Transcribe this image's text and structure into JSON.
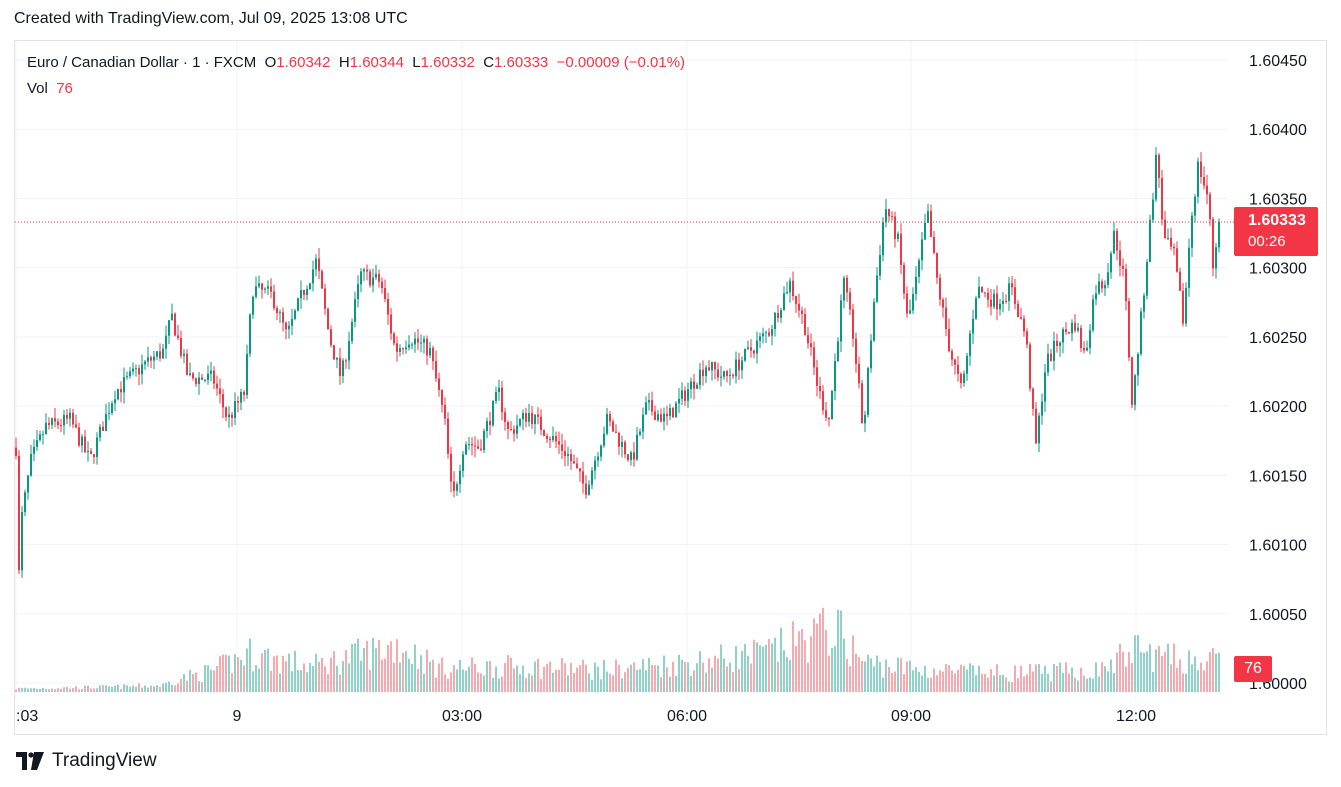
{
  "header": {
    "title": "Created with TradingView.com, Jul 09, 2025 13:08 UTC"
  },
  "legend": {
    "symbol": "Euro / Canadian Dollar · 1 · FXCM",
    "o_label": "O",
    "o_value": "1.60342",
    "h_label": "H",
    "h_value": "1.60344",
    "l_label": "L",
    "l_value": "1.60332",
    "c_label": "C",
    "c_value": "1.60333",
    "change": "−0.00009 (−0.01%)",
    "vol_label": "Vol",
    "vol_value": "76"
  },
  "badges": {
    "price": "1.60333",
    "countdown": "00:26",
    "volume": "76"
  },
  "footer": {
    "brand": "TradingView"
  },
  "colors": {
    "up": "#089981",
    "down": "#f23645",
    "grid": "#f0f3fa"
  },
  "chart_data": {
    "type": "candlestick",
    "y_axis": {
      "range": [
        1.6,
        1.6045
      ],
      "ticks": [
        "1.60450",
        "1.60400",
        "1.60350",
        "1.60300",
        "1.60250",
        "1.60200",
        "1.60150",
        "1.60100",
        "1.60050",
        "1.60000"
      ]
    },
    "x_axis": {
      "ticks": [
        ":03",
        "9",
        "03:00",
        "06:00",
        "09:00",
        "12:00"
      ]
    },
    "last_price": 1.60333,
    "path_price": [
      [
        0,
        1.6017
      ],
      [
        1,
        1.6005
      ],
      [
        6,
        1.6012
      ],
      [
        15,
        1.6016
      ],
      [
        30,
        1.60185
      ],
      [
        55,
        1.6019
      ],
      [
        75,
        1.6016
      ],
      [
        100,
        1.6021
      ],
      [
        130,
        1.6023
      ],
      [
        150,
        1.6024
      ],
      [
        158,
        1.60265
      ],
      [
        175,
        1.6022
      ],
      [
        200,
        1.6022
      ],
      [
        215,
        1.6019
      ],
      [
        232,
        1.6021
      ],
      [
        240,
        1.60285
      ],
      [
        260,
        1.6028
      ],
      [
        275,
        1.6025
      ],
      [
        290,
        1.6028
      ],
      [
        305,
        1.60305
      ],
      [
        318,
        1.6025
      ],
      [
        330,
        1.6022
      ],
      [
        350,
        1.60295
      ],
      [
        370,
        1.6029
      ],
      [
        385,
        1.6024
      ],
      [
        400,
        1.6025
      ],
      [
        420,
        1.6024
      ],
      [
        435,
        1.6019
      ],
      [
        443,
        1.6013
      ],
      [
        455,
        1.60175
      ],
      [
        470,
        1.6017
      ],
      [
        490,
        1.6021
      ],
      [
        500,
        1.6018
      ],
      [
        520,
        1.60195
      ],
      [
        540,
        1.6018
      ],
      [
        560,
        1.60165
      ],
      [
        578,
        1.6014
      ],
      [
        600,
        1.6019
      ],
      [
        625,
        1.6016
      ],
      [
        640,
        1.602
      ],
      [
        660,
        1.6019
      ],
      [
        680,
        1.6021
      ],
      [
        700,
        1.6023
      ],
      [
        720,
        1.6022
      ],
      [
        745,
        1.6024
      ],
      [
        765,
        1.60255
      ],
      [
        785,
        1.6029
      ],
      [
        800,
        1.6026
      ],
      [
        815,
        1.6021
      ],
      [
        825,
        1.6019
      ],
      [
        840,
        1.6029
      ],
      [
        850,
        1.6025
      ],
      [
        860,
        1.6018
      ],
      [
        870,
        1.6027
      ],
      [
        882,
        1.60345
      ],
      [
        895,
        1.6032
      ],
      [
        905,
        1.6026
      ],
      [
        915,
        1.60295
      ],
      [
        925,
        1.6034
      ],
      [
        935,
        1.6029
      ],
      [
        948,
        1.6024
      ],
      [
        960,
        1.6021
      ],
      [
        975,
        1.60285
      ],
      [
        995,
        1.60275
      ],
      [
        1010,
        1.60285
      ],
      [
        1025,
        1.6025
      ],
      [
        1035,
        1.6017
      ],
      [
        1045,
        1.6023
      ],
      [
        1060,
        1.6025
      ],
      [
        1075,
        1.6026
      ],
      [
        1085,
        1.60235
      ],
      [
        1095,
        1.60285
      ],
      [
        1105,
        1.6029
      ],
      [
        1115,
        1.60325
      ],
      [
        1125,
        1.6029
      ],
      [
        1133,
        1.602
      ],
      [
        1145,
        1.60285
      ],
      [
        1158,
        1.60385
      ],
      [
        1165,
        1.6032
      ],
      [
        1175,
        1.6031
      ],
      [
        1185,
        1.6026
      ],
      [
        1192,
        1.6033
      ],
      [
        1200,
        1.60375
      ],
      [
        1210,
        1.6035
      ],
      [
        1215,
        1.603
      ],
      [
        1221,
        1.60333
      ]
    ],
    "path_volume": [
      [
        0,
        4
      ],
      [
        100,
        6
      ],
      [
        150,
        8
      ],
      [
        160,
        14
      ],
      [
        200,
        25
      ],
      [
        237,
        45
      ],
      [
        300,
        30
      ],
      [
        388,
        55
      ],
      [
        430,
        28
      ],
      [
        520,
        30
      ],
      [
        600,
        26
      ],
      [
        685,
        35
      ],
      [
        760,
        45
      ],
      [
        831,
        75
      ],
      [
        860,
        35
      ],
      [
        920,
        26
      ],
      [
        1000,
        22
      ],
      [
        1100,
        25
      ],
      [
        1135,
        50
      ],
      [
        1165,
        40
      ],
      [
        1222,
        35
      ]
    ]
  }
}
